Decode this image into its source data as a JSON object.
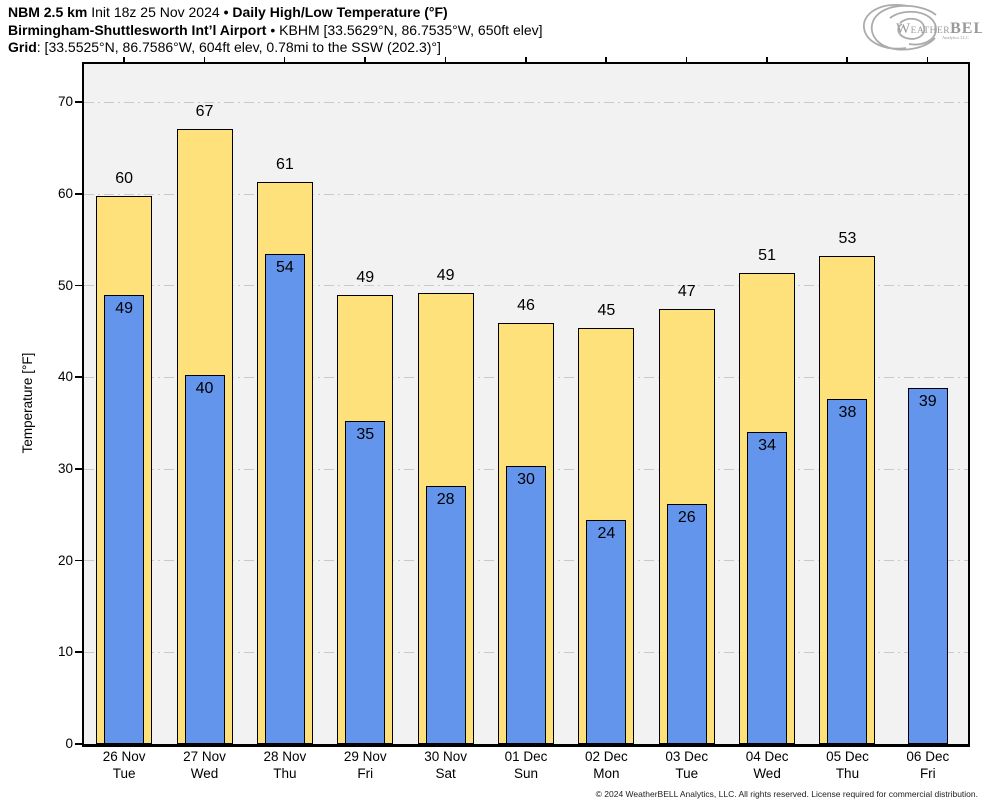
{
  "header": {
    "line1": {
      "model": "NBM 2.5 km",
      "init": " Init 18z 25 Nov 2024 ",
      "sep": "• ",
      "title": "Daily High/Low Temperature (°F)"
    },
    "line2": {
      "station": "Birmingham-Shuttlesworth Int’l Airport",
      "sep": " • ",
      "meta": "KBHM [33.5629°N, 86.7535°W, 650ft elev]"
    },
    "line3": {
      "label": "Grid",
      "value": ": [33.5525°N, 86.7586°W, 604ft elev, 0.78mi to the SSW (202.3)°]"
    }
  },
  "logo": {
    "w": "W",
    "eather": "EATHER",
    "bell": "BELL",
    "sub": "Analytics LLC"
  },
  "chart_data": {
    "type": "bar",
    "title": "Daily High/Low Temperature (°F)",
    "ylabel": "Temperature [°F]",
    "ylim": [
      0,
      74.2
    ],
    "yticks": [
      0,
      10,
      20,
      30,
      40,
      50,
      60,
      70
    ],
    "grid": true,
    "legend": false,
    "categories": [
      {
        "date": "26 Nov",
        "day": "Tue"
      },
      {
        "date": "27 Nov",
        "day": "Wed"
      },
      {
        "date": "28 Nov",
        "day": "Thu"
      },
      {
        "date": "29 Nov",
        "day": "Fri"
      },
      {
        "date": "30 Nov",
        "day": "Sat"
      },
      {
        "date": "01 Dec",
        "day": "Sun"
      },
      {
        "date": "02 Dec",
        "day": "Mon"
      },
      {
        "date": "03 Dec",
        "day": "Tue"
      },
      {
        "date": "04 Dec",
        "day": "Wed"
      },
      {
        "date": "05 Dec",
        "day": "Thu"
      },
      {
        "date": "06 Dec",
        "day": "Fri"
      }
    ],
    "series": [
      {
        "name": "High",
        "color": "#FFE17B",
        "values": [
          60,
          67,
          61,
          49,
          49,
          46,
          45,
          47,
          51,
          53,
          null
        ],
        "values_exact": [
          59.8,
          67.1,
          61.3,
          49.0,
          49.2,
          45.9,
          45.4,
          47.5,
          51.4,
          53.3,
          null
        ]
      },
      {
        "name": "Low",
        "color": "#6495ED",
        "values": [
          49,
          40,
          54,
          35,
          28,
          30,
          24,
          26,
          34,
          38,
          39
        ],
        "values_exact": [
          49.0,
          40.3,
          53.5,
          35.2,
          28.2,
          30.3,
          24.4,
          26.2,
          34.0,
          37.7,
          38.9
        ]
      }
    ]
  },
  "footer": {
    "copyright": "© 2024 WeatherBELL Analytics, LLC. All rights reserved. License required for commercial distribution."
  }
}
